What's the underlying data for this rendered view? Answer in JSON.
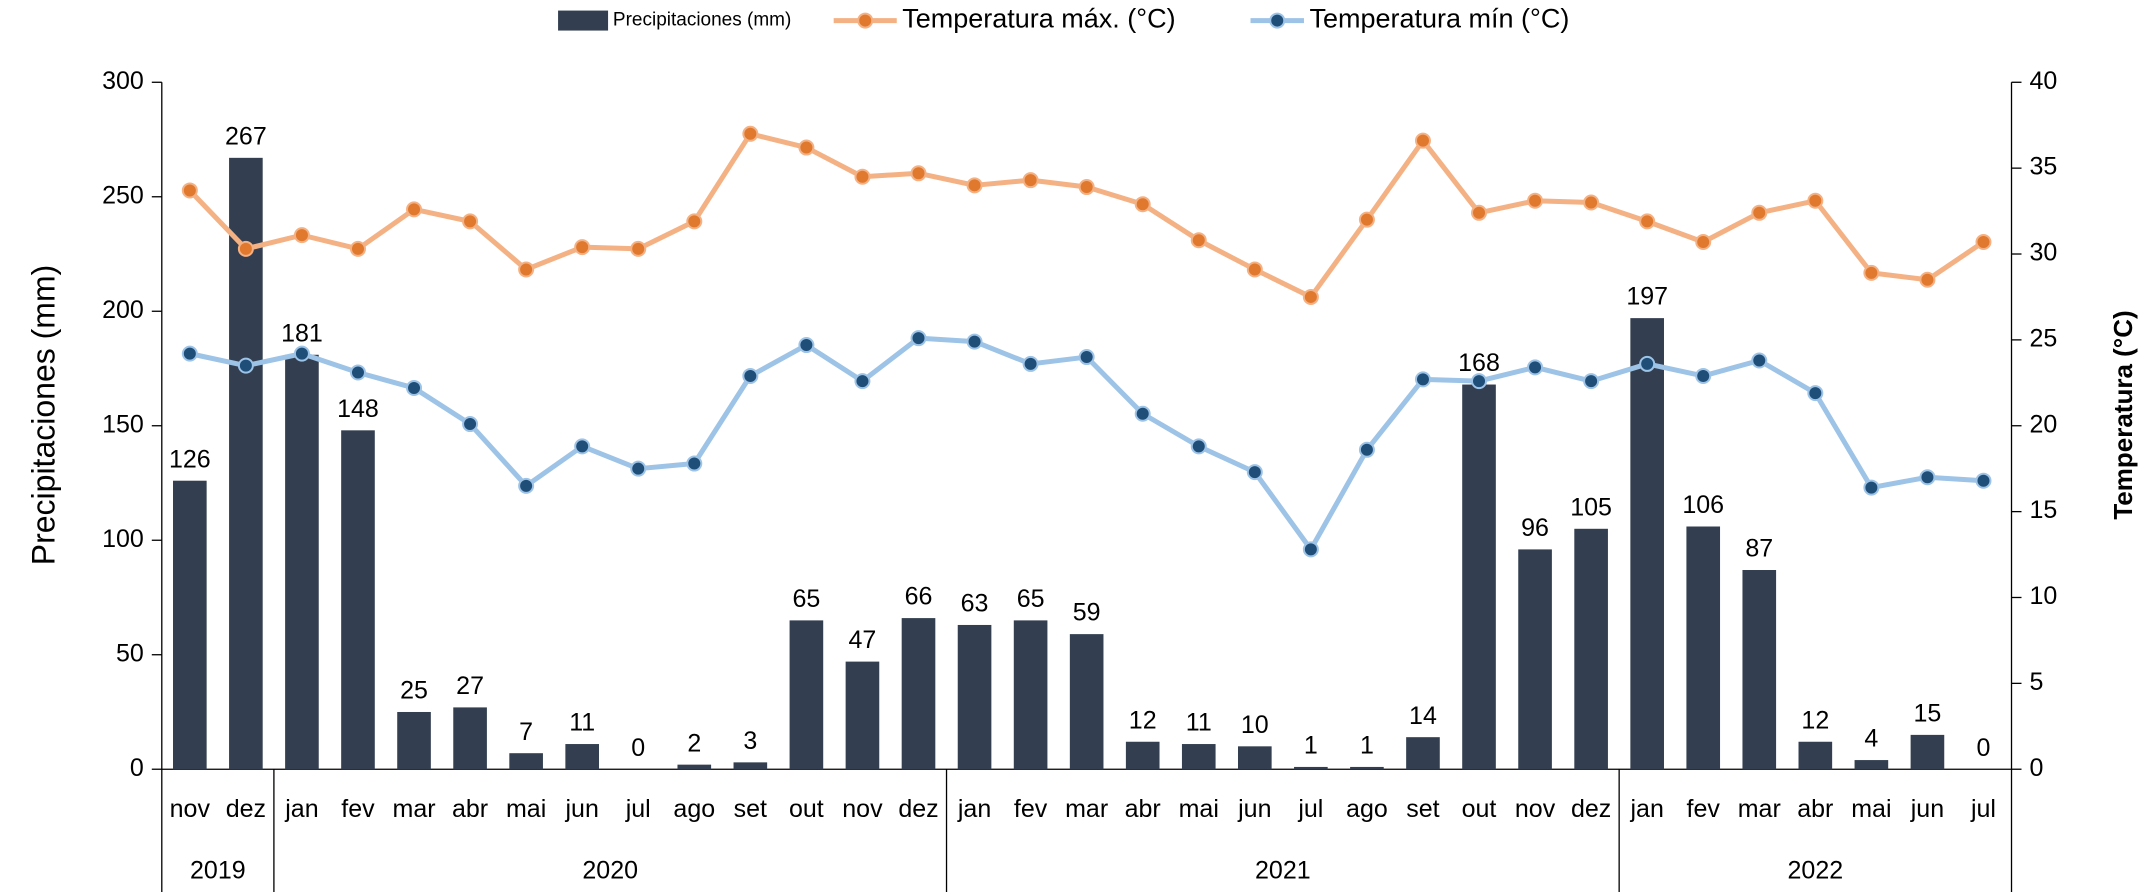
{
  "chart_data": {
    "type": "bar-line",
    "categories": [
      "nov",
      "dez",
      "jan",
      "fev",
      "mar",
      "abr",
      "mai",
      "jun",
      "jul",
      "ago",
      "set",
      "out",
      "nov",
      "dez",
      "jan",
      "fev",
      "mar",
      "abr",
      "mai",
      "jun",
      "jul",
      "ago",
      "set",
      "out",
      "nov",
      "dez",
      "jan",
      "fev",
      "mar",
      "abr",
      "mai",
      "jun",
      "jul"
    ],
    "years": [
      "2019",
      "2020",
      "2021",
      "2022"
    ],
    "series": [
      {
        "name": "Precipitaciones (mm)",
        "type": "bar",
        "color": "#333f50",
        "values": [
          126,
          267,
          181,
          148,
          25,
          27,
          7,
          11,
          0,
          2,
          3,
          65,
          47,
          66,
          63,
          65,
          59,
          12,
          11,
          10,
          1,
          1,
          14,
          168,
          96,
          105,
          197,
          106,
          87,
          12,
          4,
          15,
          0
        ]
      },
      {
        "name": "Temperatura máx. (°C)",
        "type": "line",
        "axis": "y2",
        "color": "#f4b183",
        "marker_color": "#e0782e",
        "values": [
          33.7,
          30.3,
          31.1,
          30.3,
          32.6,
          31.9,
          29.1,
          30.4,
          30.3,
          31.9,
          37.0,
          36.2,
          34.5,
          34.7,
          34.0,
          34.3,
          33.9,
          32.9,
          30.8,
          29.1,
          27.5,
          32.0,
          36.6,
          32.4,
          33.1,
          33.0,
          31.9,
          30.7,
          32.4,
          33.1,
          28.9,
          28.5,
          30.7
        ]
      },
      {
        "name": "Temperatura mín (°C)",
        "type": "line",
        "axis": "y2",
        "color": "#9dc3e6",
        "marker_color": "#1f4e79",
        "values": [
          24.2,
          23.5,
          24.2,
          23.1,
          22.2,
          20.1,
          16.5,
          18.8,
          17.5,
          17.8,
          22.9,
          24.7,
          22.6,
          25.1,
          24.9,
          23.6,
          24.0,
          20.7,
          18.8,
          17.3,
          12.8,
          18.6,
          22.7,
          22.6,
          23.4,
          22.6,
          23.6,
          22.9,
          23.8,
          21.9,
          16.4,
          17.0,
          16.8
        ]
      }
    ],
    "y_label": "Precipitaciones (mm)",
    "y2_label": "Temperatura (°C)",
    "ylim": [
      0,
      300
    ],
    "yticks": [
      0,
      50,
      100,
      150,
      200,
      250,
      300
    ],
    "y2lim": [
      0,
      40
    ],
    "y2ticks": [
      0,
      5,
      10,
      15,
      20,
      25,
      30,
      35,
      40
    ],
    "legend": "top"
  }
}
